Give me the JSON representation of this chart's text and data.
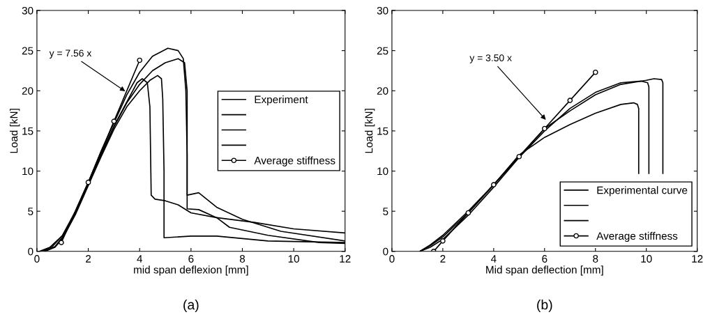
{
  "chart_data": [
    {
      "type": "line",
      "xlabel": "mid span deflexion [mm]",
      "ylabel": "Load [kN]",
      "xlim": [
        0,
        12
      ],
      "ylim": [
        0,
        30
      ],
      "xticks": [
        0,
        2,
        4,
        6,
        8,
        10,
        12
      ],
      "yticks": [
        0,
        5,
        10,
        15,
        20,
        25,
        30
      ],
      "legend": "right",
      "grid": false,
      "annotations": [
        {
          "text": "y = 7.56 x",
          "x": 3.5,
          "y": 19.8
        },
        "(a)"
      ],
      "series": [
        {
          "name": "Experiment",
          "color": "#000000",
          "x": [
            0.1,
            0.5,
            1.0,
            1.5,
            2.0,
            2.5,
            3.0,
            3.5,
            4.0,
            4.5,
            5.1,
            5.5,
            5.7,
            5.8,
            5.85,
            5.85,
            6.3,
            7.0,
            8.5,
            10.0,
            12.0
          ],
          "values": [
            0,
            0.5,
            2.0,
            5.0,
            8.6,
            12.5,
            16.0,
            19.5,
            22.3,
            24.3,
            25.3,
            25.0,
            24.0,
            20.0,
            12.0,
            5.3,
            5.2,
            4.2,
            3.6,
            2.8,
            2.3
          ]
        },
        {
          "color": "#000000",
          "x": [
            0.2,
            0.6,
            1.0,
            1.5,
            2.0,
            2.5,
            3.0,
            3.5,
            4.0,
            4.5,
            5.0,
            5.5,
            5.75,
            5.85,
            5.85,
            6.3,
            7.0,
            8.0,
            9.5,
            12.0
          ],
          "values": [
            0,
            0.6,
            2.0,
            4.8,
            8.4,
            12.0,
            15.5,
            18.5,
            20.8,
            22.5,
            23.5,
            24.0,
            23.5,
            20.0,
            7.0,
            7.3,
            5.5,
            4.0,
            2.5,
            1.3
          ]
        },
        {
          "color": "#000000",
          "x": [
            0.3,
            0.7,
            1.0,
            1.5,
            2.0,
            2.5,
            3.0,
            3.5,
            3.9,
            4.1,
            4.3,
            4.4,
            4.45,
            4.6,
            5.0,
            5.5,
            6.0,
            7.0,
            7.5,
            9.0,
            11.0,
            12.0
          ],
          "values": [
            0,
            0.6,
            1.8,
            4.8,
            8.4,
            12.2,
            15.6,
            18.6,
            21.0,
            21.5,
            21.0,
            18.0,
            7.0,
            6.5,
            6.3,
            5.8,
            4.8,
            4.2,
            3.0,
            2.0,
            1.1,
            1.0
          ]
        },
        {
          "color": "#000000",
          "x": [
            0.3,
            0.7,
            1.0,
            1.5,
            2.0,
            2.5,
            3.0,
            3.5,
            4.0,
            4.4,
            4.7,
            4.85,
            4.9,
            4.95,
            4.95,
            6.0,
            7.0,
            8.0,
            9.0,
            12.0
          ],
          "values": [
            0,
            0.5,
            1.6,
            4.6,
            8.2,
            11.8,
            15.2,
            18.0,
            20.0,
            21.3,
            21.9,
            21.5,
            19.0,
            10.0,
            1.7,
            1.9,
            1.9,
            1.6,
            1.3,
            1.1
          ]
        },
        {
          "name": "Average stiffness",
          "color": "#000000",
          "marker": "circle",
          "x": [
            0.95,
            2.0,
            3.0,
            4.0
          ],
          "values": [
            1.1,
            8.6,
            16.2,
            23.8
          ]
        }
      ]
    },
    {
      "type": "line",
      "xlabel": "Mid span deflection [mm]",
      "ylabel": "Load [kN]",
      "xlim": [
        0,
        12
      ],
      "ylim": [
        0,
        30
      ],
      "xticks": [
        0,
        2,
        4,
        6,
        8,
        10,
        12
      ],
      "yticks": [
        0,
        5,
        10,
        15,
        20,
        25,
        30
      ],
      "legend": "bottom right",
      "grid": false,
      "annotations": [
        {
          "text": "y = 3.50 x",
          "x": 6.1,
          "y": 16.2
        },
        "(b)"
      ],
      "series": [
        {
          "name": "Experimental curve",
          "color": "#000000",
          "x": [
            1.1,
            1.5,
            2.0,
            3.0,
            4.0,
            5.0,
            6.0,
            7.0,
            8.0,
            9.0,
            10.0,
            10.3,
            10.6,
            10.65,
            10.65
          ],
          "values": [
            0,
            0.8,
            2.0,
            5.0,
            8.3,
            11.8,
            15.3,
            17.5,
            19.5,
            20.8,
            21.3,
            21.5,
            21.4,
            21.0,
            9.7
          ]
        },
        {
          "color": "#000000",
          "x": [
            1.1,
            1.5,
            2.0,
            3.0,
            4.0,
            5.0,
            6.0,
            7.0,
            8.0,
            9.0,
            9.8,
            10.05,
            10.1,
            10.1
          ],
          "values": [
            0,
            0.5,
            1.5,
            4.5,
            8.0,
            11.7,
            15.0,
            17.8,
            19.8,
            21.0,
            21.2,
            21.0,
            20.5,
            9.7
          ]
        },
        {
          "color": "#000000",
          "x": [
            1.1,
            1.5,
            2.0,
            3.0,
            4.0,
            5.0,
            6.0,
            7.0,
            8.0,
            9.0,
            9.5,
            9.65,
            9.7,
            9.7
          ],
          "values": [
            0,
            0.7,
            1.8,
            4.8,
            8.3,
            12.0,
            14.2,
            15.8,
            17.2,
            18.3,
            18.5,
            18.3,
            17.8,
            9.7
          ]
        },
        {
          "name": "Average stiffness",
          "color": "#000000",
          "marker": "circle",
          "x": [
            1.64,
            2.0,
            3.0,
            4.0,
            5.0,
            6.0,
            7.0,
            8.0
          ],
          "values": [
            0,
            1.3,
            4.8,
            8.3,
            11.8,
            15.3,
            18.8,
            22.3
          ]
        }
      ]
    }
  ]
}
